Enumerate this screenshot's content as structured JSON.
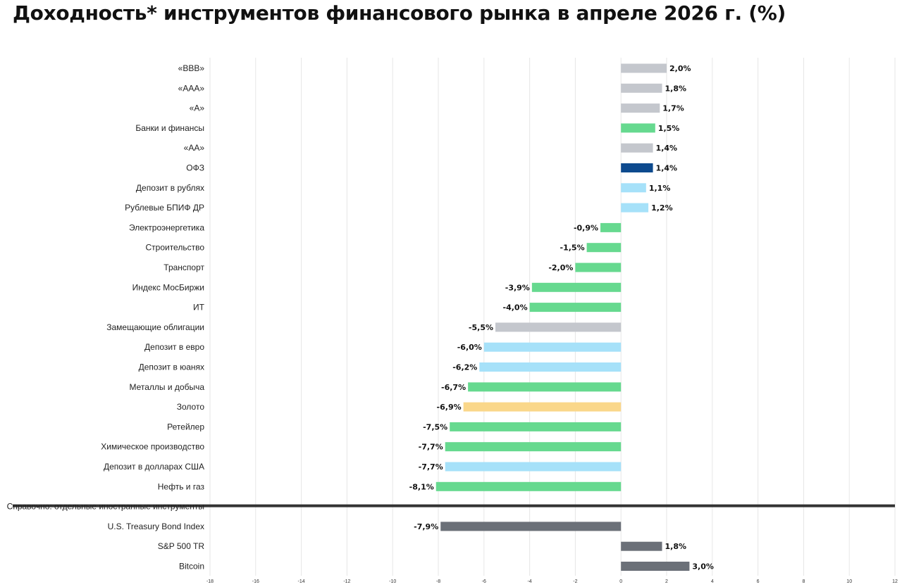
{
  "chart_data": {
    "type": "bar",
    "orientation": "horizontal",
    "title": "Доходность* инструментов финансового рынка в апреле 2026 г. (%)",
    "xlim": [
      -18,
      12
    ],
    "xticks": [
      -18,
      -16,
      -14,
      -12,
      -10,
      -8,
      -6,
      -4,
      -2,
      0,
      2,
      4,
      6,
      8,
      10,
      12
    ],
    "grid": true,
    "colors": {
      "grey": "#c4c7cd",
      "green": "#66d98f",
      "navy": "#0d4a8e",
      "lightblue": "#a6e1f9",
      "gold": "#fad78a",
      "dark": "#6b7078"
    },
    "bars": [
      {
        "label": "«BBB»",
        "value": 2.0,
        "text": "2,0%",
        "color": "grey"
      },
      {
        "label": "«AAA»",
        "value": 1.8,
        "text": "1,8%",
        "color": "grey"
      },
      {
        "label": "«A»",
        "value": 1.7,
        "text": "1,7%",
        "color": "grey"
      },
      {
        "label": "Банки и финансы",
        "value": 1.5,
        "text": "1,5%",
        "color": "green"
      },
      {
        "label": "«AA»",
        "value": 1.4,
        "text": "1,4%",
        "color": "grey"
      },
      {
        "label": "ОФЗ",
        "value": 1.4,
        "text": "1,4%",
        "color": "navy"
      },
      {
        "label": "Депозит в рублях",
        "value": 1.1,
        "text": "1,1%",
        "color": "lightblue"
      },
      {
        "label": "Рублевые БПИФ ДР",
        "value": 1.2,
        "text": "1,2%",
        "color": "lightblue"
      },
      {
        "label": "Электроэнергетика",
        "value": -0.9,
        "text": "-0,9%",
        "color": "green"
      },
      {
        "label": "Строительство",
        "value": -1.5,
        "text": "-1,5%",
        "color": "green"
      },
      {
        "label": "Транспорт",
        "value": -2.0,
        "text": "-2,0%",
        "color": "green"
      },
      {
        "label": "Индекс МосБиржи",
        "value": -3.9,
        "text": "-3,9%",
        "color": "green"
      },
      {
        "label": "ИТ",
        "value": -4.0,
        "text": "-4,0%",
        "color": "green"
      },
      {
        "label": "Замещающие облигации",
        "value": -5.5,
        "text": "-5,5%",
        "color": "grey"
      },
      {
        "label": "Депозит в евро",
        "value": -6.0,
        "text": "-6,0%",
        "color": "lightblue"
      },
      {
        "label": "Депозит в юанях",
        "value": -6.2,
        "text": "-6,2%",
        "color": "lightblue"
      },
      {
        "label": "Металлы и добыча",
        "value": -6.7,
        "text": "-6,7%",
        "color": "green"
      },
      {
        "label": "Золото",
        "value": -6.9,
        "text": "-6,9%",
        "color": "gold"
      },
      {
        "label": "Ретейлер",
        "value": -7.5,
        "text": "-7,5%",
        "color": "green"
      },
      {
        "label": "Химическое производство",
        "value": -7.7,
        "text": "-7,7%",
        "color": "green"
      },
      {
        "label": "Депозит в долларах США",
        "value": -7.7,
        "text": "-7,7%",
        "color": "lightblue"
      },
      {
        "label": "Нефть и газ",
        "value": -8.1,
        "text": "-8,1%",
        "color": "green"
      },
      {
        "label": "Справочно: отдельные иностранные инструменты",
        "separator": true
      },
      {
        "label": "U.S. Treasury Bond Index",
        "value": -7.9,
        "text": "-7,9%",
        "color": "dark"
      },
      {
        "label": "S&P 500 TR",
        "value": 1.8,
        "text": "1,8%",
        "color": "dark"
      },
      {
        "label": "Bitcoin",
        "value": 3.0,
        "text": "3,0%",
        "color": "dark"
      }
    ]
  }
}
